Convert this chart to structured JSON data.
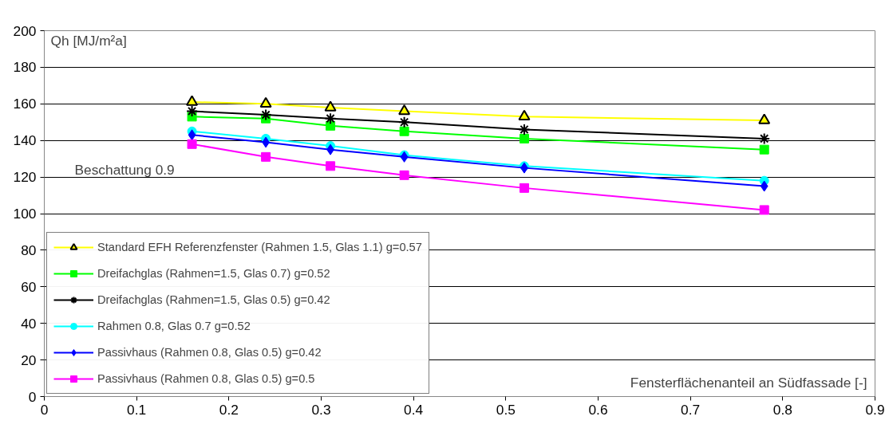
{
  "chart_data": {
    "type": "line",
    "ylabel": "Qh [MJ/m²a]",
    "xlabel": "Fensterflächenanteil an Südfassade [-]",
    "x": [
      0.16,
      0.24,
      0.31,
      0.39,
      0.52,
      0.78
    ],
    "xlim": [
      0,
      0.9
    ],
    "xticks": [
      0,
      0.1,
      0.2,
      0.3,
      0.4,
      0.5,
      0.6,
      0.7,
      0.8,
      0.9
    ],
    "ylim": [
      0,
      200
    ],
    "yticks": [
      0,
      20,
      40,
      60,
      80,
      100,
      120,
      140,
      160,
      180,
      200
    ],
    "grid": "y",
    "legend": "bottom left",
    "annotations": [
      "Beschattung 0.9"
    ],
    "series": [
      {
        "name": "Standard EFH Referenzfenster (Rahmen 1.5, Glas 1.1) g=0.57",
        "color": "#ffff00",
        "marker": "triangle",
        "values": [
          161,
          160,
          158,
          156,
          153,
          151
        ]
      },
      {
        "name": "Dreifachglas (Rahmen=1.5, Glas 0.7) g=0.52",
        "color": "#00ff00",
        "marker": "square",
        "values": [
          153,
          152,
          148,
          145,
          141,
          135
        ]
      },
      {
        "name": "Dreifachglas (Rahmen=1.5, Glas 0.5) g=0.42",
        "color": "#000000",
        "marker": "cross",
        "values": [
          156,
          154,
          152,
          150,
          146,
          141
        ]
      },
      {
        "name": "Rahmen 0.8, Glas 0.7 g=0.52",
        "color": "#00ffff",
        "marker": "circle",
        "values": [
          145,
          141,
          137,
          132,
          126,
          118
        ]
      },
      {
        "name": "Passivhaus (Rahmen 0.8, Glas 0.5) g=0.42",
        "color": "#0000ff",
        "marker": "diamond",
        "values": [
          143,
          139,
          135,
          131,
          125,
          115
        ]
      },
      {
        "name": "Passivhaus (Rahmen 0.8, Glas 0.5) g=0.5",
        "color": "#ff00ff",
        "marker": "square",
        "values": [
          138,
          131,
          126,
          121,
          114,
          102
        ]
      }
    ]
  }
}
